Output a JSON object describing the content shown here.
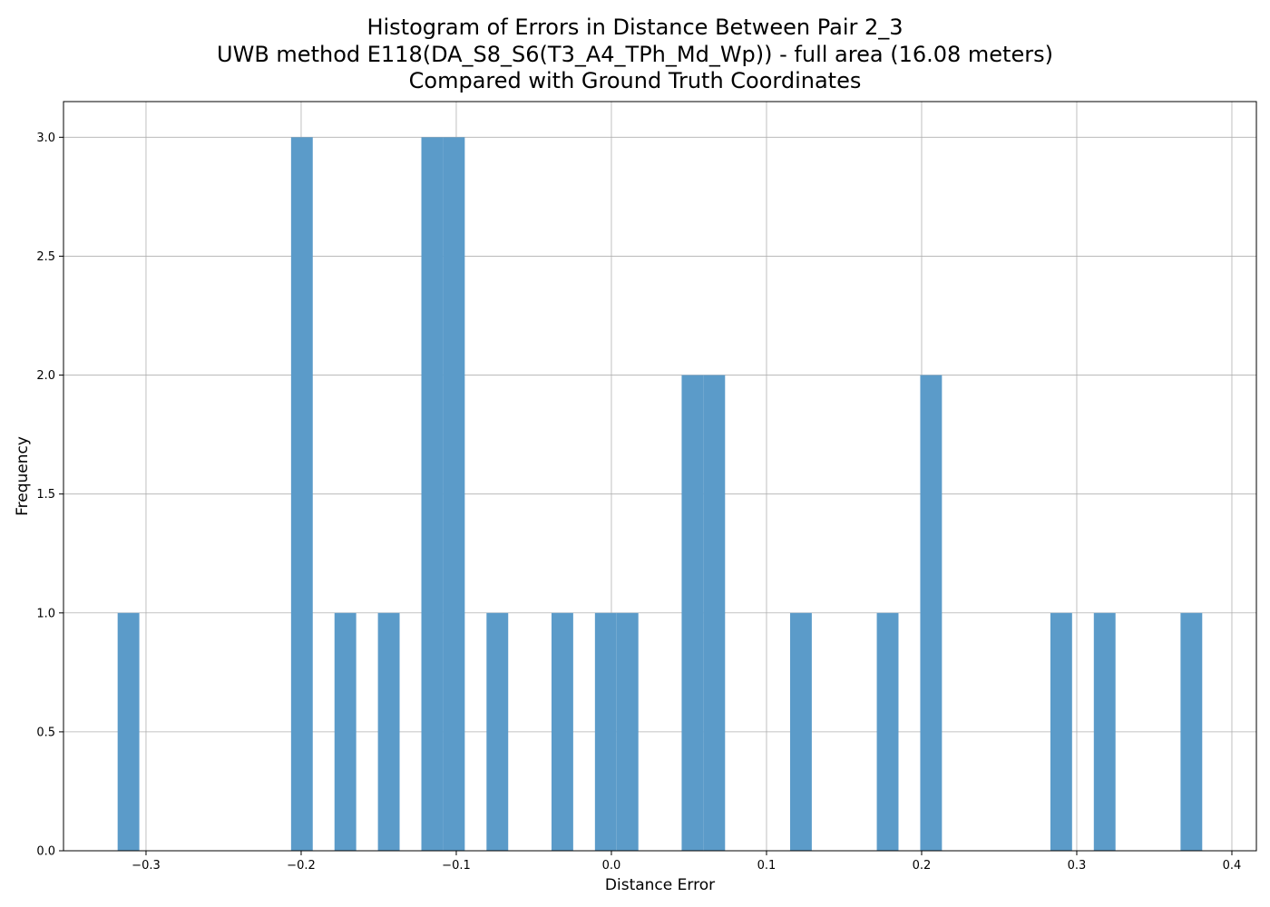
{
  "chart_data": {
    "type": "bar",
    "title_lines": [
      "Histogram of Errors in Distance Between Pair 2_3",
      "UWB method E118(DA_S8_S6(T3_A4_TPh_Md_Wp)) - full area (16.08 meters)",
      "Compared with Ground Truth Coordinates"
    ],
    "xlabel": "Distance Error",
    "ylabel": "Frequency",
    "xlim": [
      -0.3532,
      0.4158
    ],
    "ylim": [
      0,
      3.15
    ],
    "xticks": [
      -0.3,
      -0.2,
      -0.1,
      0.0,
      0.1,
      0.2,
      0.3,
      0.4
    ],
    "xtick_labels": [
      "−0.3",
      "−0.2",
      "−0.1",
      "0.0",
      "0.1",
      "0.2",
      "0.3",
      "0.4"
    ],
    "yticks": [
      0.0,
      0.5,
      1.0,
      1.5,
      2.0,
      2.5,
      3.0
    ],
    "ytick_labels": [
      "0.0",
      "0.5",
      "1.0",
      "1.5",
      "2.0",
      "2.5",
      "3.0"
    ],
    "grid": true,
    "bar_color": "#5b9bc9",
    "bin_width": 0.01398,
    "bins": [
      {
        "x0": -0.3183,
        "count": 1
      },
      {
        "x0": -0.2065,
        "count": 3
      },
      {
        "x0": -0.1785,
        "count": 1
      },
      {
        "x0": -0.1505,
        "count": 1
      },
      {
        "x0": -0.1225,
        "count": 3
      },
      {
        "x0": -0.1085,
        "count": 3
      },
      {
        "x0": -0.0805,
        "count": 1
      },
      {
        "x0": -0.0386,
        "count": 1
      },
      {
        "x0": -0.0106,
        "count": 1
      },
      {
        "x0": 0.0034,
        "count": 1
      },
      {
        "x0": 0.0453,
        "count": 2
      },
      {
        "x0": 0.0593,
        "count": 2
      },
      {
        "x0": 0.1152,
        "count": 1
      },
      {
        "x0": 0.1711,
        "count": 1
      },
      {
        "x0": 0.1991,
        "count": 2
      },
      {
        "x0": 0.283,
        "count": 1
      },
      {
        "x0": 0.311,
        "count": 1
      },
      {
        "x0": 0.3669,
        "count": 1
      }
    ]
  }
}
